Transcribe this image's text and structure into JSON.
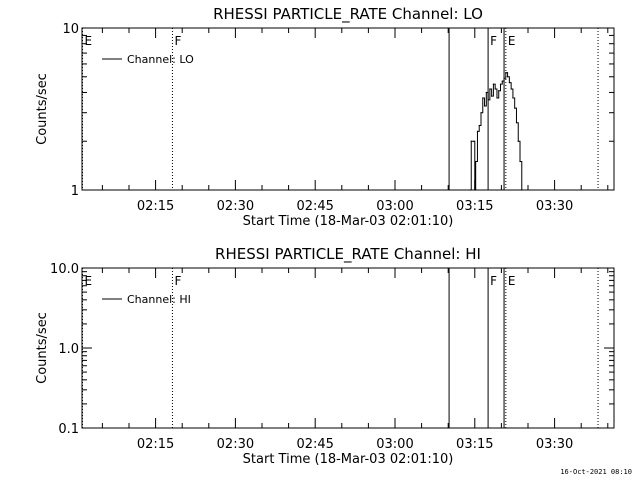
{
  "timestamp": "16-Oct-2021 08:10",
  "x_ticks": [
    "02:15",
    "02:30",
    "02:45",
    "03:00",
    "03:15",
    "03:30"
  ],
  "x_label": "Start Time (18-Mar-03 02:01:10)",
  "chart_data": [
    {
      "type": "line",
      "title": "RHESSI PARTICLE_RATE Channel: LO",
      "xlabel": "Start Time (18-Mar-03 02:01:10)",
      "ylabel": "Counts/sec",
      "yscale": "log",
      "ylim": [
        1,
        10
      ],
      "y_tick_labels": [
        "1",
        "10"
      ],
      "x_range": [
        "02:01:10",
        "03:41:10"
      ],
      "legend": {
        "label": "Channel: LO",
        "position": "top-left"
      },
      "event_markers": [
        {
          "time": "02:01:10",
          "label": "E",
          "style": "dotted"
        },
        {
          "time": "02:18:10",
          "label": "F",
          "style": "dotted"
        },
        {
          "time": "03:10:10",
          "label": "",
          "style": "solid"
        },
        {
          "time": "03:17:30",
          "label": "F",
          "style": "solid"
        },
        {
          "time": "03:20:30",
          "label": "",
          "style": "solid"
        },
        {
          "time": "03:20:50",
          "label": "E",
          "style": "dotted"
        },
        {
          "time": "03:38:10",
          "label": "",
          "style": "dotted"
        }
      ],
      "series": [
        {
          "name": "Channel: LO",
          "points": [
            [
              "03:14:10",
              1
            ],
            [
              "03:14:20",
              2
            ],
            [
              "03:14:50",
              2
            ],
            [
              "03:15:00",
              1
            ],
            [
              "03:15:10",
              1.5
            ],
            [
              "03:15:30",
              2.3
            ],
            [
              "03:15:50",
              2.5
            ],
            [
              "03:16:10",
              3
            ],
            [
              "03:16:30",
              3.7
            ],
            [
              "03:16:50",
              3.3
            ],
            [
              "03:17:10",
              4
            ],
            [
              "03:17:30",
              3.6
            ],
            [
              "03:17:50",
              4.2
            ],
            [
              "03:18:10",
              3.8
            ],
            [
              "03:18:30",
              4.5
            ],
            [
              "03:18:50",
              4.2
            ],
            [
              "03:19:10",
              3.7
            ],
            [
              "03:19:30",
              4.1
            ],
            [
              "03:19:50",
              4.5
            ],
            [
              "03:20:10",
              4.7
            ],
            [
              "03:20:30",
              4.9
            ],
            [
              "03:20:50",
              5.3
            ],
            [
              "03:21:10",
              5
            ],
            [
              "03:21:30",
              4.6
            ],
            [
              "03:21:50",
              4.2
            ],
            [
              "03:22:10",
              3.7
            ],
            [
              "03:22:30",
              3.2
            ],
            [
              "03:22:50",
              2.6
            ],
            [
              "03:23:10",
              2
            ],
            [
              "03:23:30",
              1.5
            ],
            [
              "03:23:50",
              1
            ]
          ]
        }
      ]
    },
    {
      "type": "line",
      "title": "RHESSI PARTICLE_RATE Channel: HI",
      "xlabel": "Start Time (18-Mar-03 02:01:10)",
      "ylabel": "Counts/sec",
      "yscale": "log",
      "ylim": [
        0.1,
        10
      ],
      "y_tick_labels": [
        "0.1",
        "1.0",
        "10.0"
      ],
      "x_range": [
        "02:01:10",
        "03:41:10"
      ],
      "legend": {
        "label": "Channel: HI",
        "position": "top-left"
      },
      "event_markers": [
        {
          "time": "02:01:10",
          "label": "E",
          "style": "dotted"
        },
        {
          "time": "02:18:10",
          "label": "F",
          "style": "dotted"
        },
        {
          "time": "03:10:10",
          "label": "",
          "style": "solid"
        },
        {
          "time": "03:17:30",
          "label": "F",
          "style": "solid"
        },
        {
          "time": "03:20:30",
          "label": "",
          "style": "solid"
        },
        {
          "time": "03:20:50",
          "label": "E",
          "style": "dotted"
        },
        {
          "time": "03:38:10",
          "label": "",
          "style": "dotted"
        }
      ],
      "series": [
        {
          "name": "Channel: HI",
          "points": []
        }
      ]
    }
  ]
}
